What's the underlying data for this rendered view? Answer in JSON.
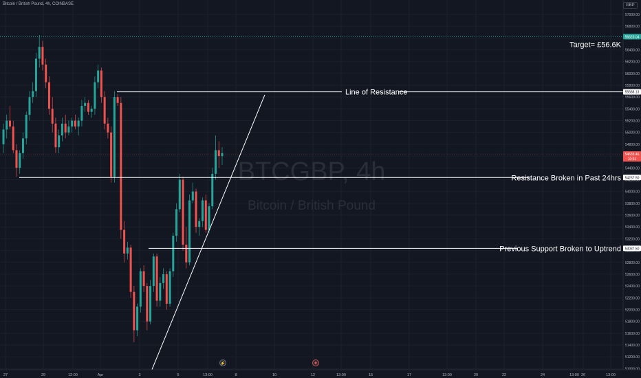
{
  "header": {
    "title": "Bitcoin / British Pound, 4h, COINBASE",
    "currency": "GBP"
  },
  "watermark": {
    "symbol": "BTCGBP, 4h",
    "name": "Bitcoin / British Pound"
  },
  "colors": {
    "background": "#131722",
    "up": "#26a69a",
    "down": "#ef5350",
    "target_line": "#26a69a",
    "drawing": "#ffffff"
  },
  "chart_data": {
    "type": "candlestick",
    "y_ticks": [
      "57000.00",
      "56800.00",
      "56600.00",
      "56400.00",
      "56200.00",
      "56000.00",
      "55800.00",
      "55600.00",
      "55400.00",
      "55200.00",
      "55000.00",
      "54800.00",
      "54600.00",
      "54400.00",
      "54200.00",
      "54000.00",
      "53800.00",
      "53600.00",
      "53400.00",
      "53200.00",
      "53000.00",
      "52800.00",
      "52600.00",
      "52400.00",
      "52200.00",
      "52000.00",
      "51800.00",
      "51600.00",
      "51400.00",
      "51200.00",
      "51000.00"
    ],
    "x_ticks": [
      "27",
      "29",
      "12:00",
      "Apr",
      "3",
      "5",
      "13:00",
      "8",
      "10",
      "12",
      "13:00",
      "15",
      "17",
      "13:00",
      "20",
      "22",
      "24",
      "13:00",
      "26",
      "13:00"
    ],
    "ylim": [
      50900,
      57150
    ],
    "price_labels": [
      {
        "key": "target",
        "value": "56623.04",
        "price": 56623
      },
      {
        "key": "resistance",
        "value": "55688.13",
        "price": 55688
      },
      {
        "key": "current",
        "value": "54635.46",
        "sub": "10:51",
        "price": 54635
      },
      {
        "key": "resistance_broken",
        "value": "54237.50",
        "price": 54237
      },
      {
        "key": "support",
        "value": "53037.50",
        "price": 53037
      }
    ],
    "annotations": [
      {
        "key": "target",
        "text": "Target= £56.6K"
      },
      {
        "key": "line_of_resistance",
        "text": "Line of Resistance"
      },
      {
        "key": "resistance_broken",
        "text": "Resistance Broken in Past 24hrs"
      },
      {
        "key": "previous_support",
        "text": "Previous Support Broken to Uptrend"
      }
    ],
    "candles": [
      [
        54800,
        55150,
        54650,
        55050
      ],
      [
        55050,
        55300,
        54900,
        55200
      ],
      [
        55200,
        55450,
        55050,
        55100
      ],
      [
        55100,
        55200,
        54650,
        54700
      ],
      [
        54700,
        54800,
        54250,
        54400
      ],
      [
        54400,
        54700,
        54300,
        54650
      ],
      [
        54650,
        55000,
        54550,
        54900
      ],
      [
        54900,
        55350,
        54800,
        55300
      ],
      [
        55300,
        55700,
        55200,
        55600
      ],
      [
        55600,
        55850,
        55500,
        55700
      ],
      [
        55700,
        56350,
        55600,
        56250
      ],
      [
        56250,
        56650,
        56100,
        56450
      ],
      [
        56450,
        56550,
        56050,
        56150
      ],
      [
        56150,
        56250,
        55750,
        55850
      ],
      [
        55850,
        55950,
        55300,
        55400
      ],
      [
        55400,
        55600,
        55000,
        55150
      ],
      [
        55150,
        55250,
        54650,
        54750
      ],
      [
        54750,
        55050,
        54650,
        54950
      ],
      [
        54950,
        55250,
        54850,
        55150
      ],
      [
        55150,
        55300,
        54900,
        55000
      ],
      [
        55000,
        55200,
        54950,
        55100
      ],
      [
        55100,
        55250,
        55000,
        55200
      ],
      [
        55200,
        55300,
        55050,
        55100
      ],
      [
        55100,
        55250,
        54950,
        55200
      ],
      [
        55200,
        55550,
        55100,
        55450
      ],
      [
        55450,
        55600,
        55350,
        55500
      ],
      [
        55500,
        55550,
        55300,
        55350
      ],
      [
        55350,
        55450,
        55250,
        55400
      ],
      [
        55400,
        55950,
        55300,
        55850
      ],
      [
        55850,
        56150,
        55750,
        56050
      ],
      [
        56050,
        56100,
        55500,
        55600
      ],
      [
        55600,
        55700,
        55050,
        55150
      ],
      [
        55150,
        55250,
        54900,
        55000
      ],
      [
        55000,
        55100,
        54150,
        54250
      ],
      [
        54250,
        55700,
        54150,
        55600
      ],
      [
        55600,
        55650,
        55450,
        55500
      ],
      [
        55500,
        55600,
        53200,
        53350
      ],
      [
        53350,
        53500,
        52800,
        52950
      ],
      [
        52950,
        53150,
        52850,
        53050
      ],
      [
        53050,
        53100,
        52200,
        52300
      ],
      [
        52300,
        52400,
        51450,
        51650
      ],
      [
        51650,
        52100,
        51550,
        52050
      ],
      [
        52050,
        52700,
        51950,
        52650
      ],
      [
        52650,
        52750,
        52300,
        52400
      ],
      [
        52400,
        52450,
        51650,
        51800
      ],
      [
        51800,
        52500,
        51750,
        52400
      ],
      [
        52400,
        52950,
        52300,
        52900
      ],
      [
        52900,
        52950,
        52050,
        52150
      ],
      [
        52150,
        52550,
        52050,
        52450
      ],
      [
        52450,
        52700,
        52350,
        52600
      ],
      [
        52600,
        52650,
        52000,
        52100
      ],
      [
        52100,
        52700,
        52050,
        52650
      ],
      [
        52650,
        53300,
        52550,
        53250
      ],
      [
        53250,
        53800,
        53150,
        53700
      ],
      [
        53700,
        54300,
        53650,
        54200
      ],
      [
        54200,
        54250,
        53000,
        53100
      ],
      [
        53100,
        53400,
        52700,
        52800
      ],
      [
        52800,
        53950,
        52750,
        53850
      ],
      [
        53850,
        54150,
        53800,
        54000
      ],
      [
        54000,
        54050,
        53300,
        53400
      ],
      [
        53400,
        53550,
        53250,
        53500
      ],
      [
        53500,
        53900,
        53400,
        53850
      ],
      [
        53850,
        53950,
        53300,
        53350
      ],
      [
        53350,
        53800,
        53300,
        53750
      ],
      [
        53750,
        54400,
        53700,
        54300
      ],
      [
        54300,
        54950,
        54200,
        54700
      ],
      [
        54700,
        54850,
        54400,
        54600
      ],
      [
        54600,
        54750,
        54450,
        54650
      ]
    ]
  }
}
